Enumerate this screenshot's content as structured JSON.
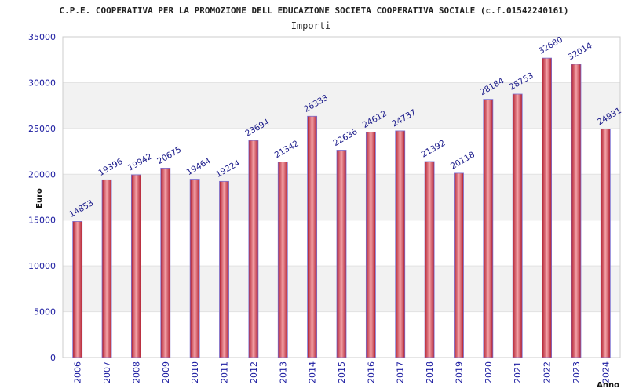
{
  "chart_data": {
    "type": "bar",
    "title": "C.P.E. COOPERATIVA PER LA PROMOZIONE DELL EDUCAZIONE SOCIETA COOPERATIVA SOCIALE (c.f.01542240161)",
    "subtitle": "Importi",
    "xlabel": "Anno",
    "ylabel": "Euro",
    "ylim": [
      0,
      35000
    ],
    "yticks": [
      0,
      5000,
      10000,
      15000,
      20000,
      25000,
      30000,
      35000
    ],
    "grid": true,
    "categories": [
      "2006",
      "2007",
      "2008",
      "2009",
      "2010",
      "2011",
      "2012",
      "2013",
      "2014",
      "2015",
      "2016",
      "2017",
      "2018",
      "2019",
      "2020",
      "2021",
      "2022",
      "2023",
      "2024"
    ],
    "values": [
      14853,
      19396,
      19942,
      20675,
      19464,
      19224,
      23694,
      21342,
      26333,
      22636,
      24612,
      24737,
      21392,
      20118,
      28184,
      28753,
      32680,
      32014,
      24931
    ],
    "colors": {
      "bar_edge": "#b01c2e",
      "bar_mid": "#f4a3a8",
      "bar_outline": "#7a6fd0",
      "band": "#f2f2f2",
      "axis": "#999999"
    }
  }
}
